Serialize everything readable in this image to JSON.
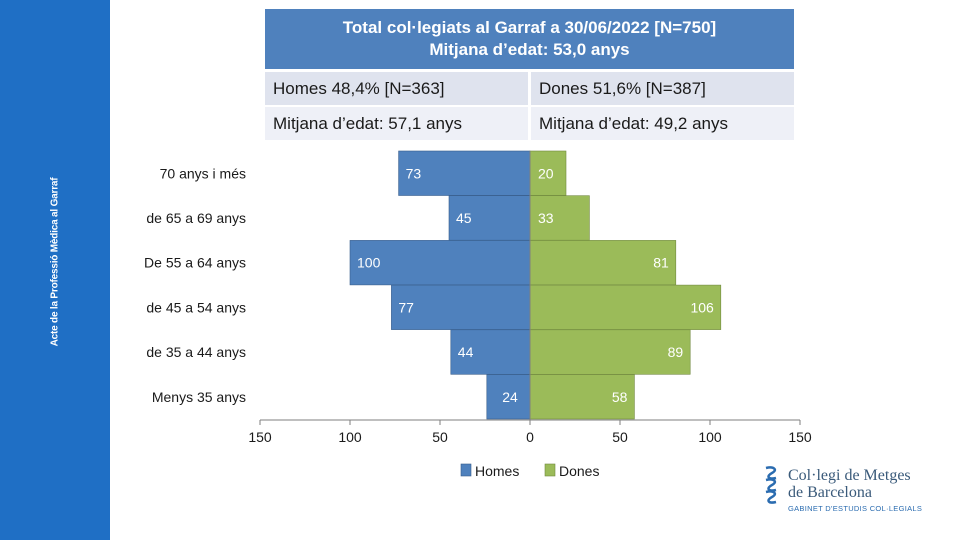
{
  "sidebar": {
    "text": "Acte de la Professió Mèdica al Garraf"
  },
  "header": {
    "title_line1": "Total col·legiats al Garraf a 30/06/2022 [N=750]",
    "title_line2": "Mitjana  d’edat: 53,0 anys"
  },
  "stats": {
    "men_share": "Homes 48,4% [N=363]",
    "women_share": "Dones 51,6% [N=387]",
    "men_age": "Mitjana d’edat: 57,1 anys",
    "women_age": "Mitjana d’edat: 49,2 anys"
  },
  "chart_data": {
    "type": "bar",
    "orientation": "horizontal",
    "layout": "population-pyramid",
    "categories": [
      "70 anys i més",
      "de 65 a 69 anys",
      "De 55 a 64 anys",
      "de 45 a 54 anys",
      "de 35 a 44 anys",
      "Menys 35 anys"
    ],
    "series": [
      {
        "name": "Homes",
        "color": "#4f81bd",
        "values": [
          73,
          45,
          100,
          77,
          44,
          24
        ]
      },
      {
        "name": "Dones",
        "color": "#9bbb59",
        "values": [
          20,
          33,
          81,
          106,
          89,
          58
        ]
      }
    ],
    "x_ticks": [
      "150",
      "100",
      "50",
      "0",
      "50",
      "100",
      "150"
    ],
    "xlim": [
      -150,
      150
    ],
    "legend_position": "bottom",
    "grid": false
  },
  "logo": {
    "line1": "Col·legi de Metges",
    "line2": "de Barcelona",
    "line3": "GABINET D'ESTUDIS COL·LEGIALS"
  }
}
